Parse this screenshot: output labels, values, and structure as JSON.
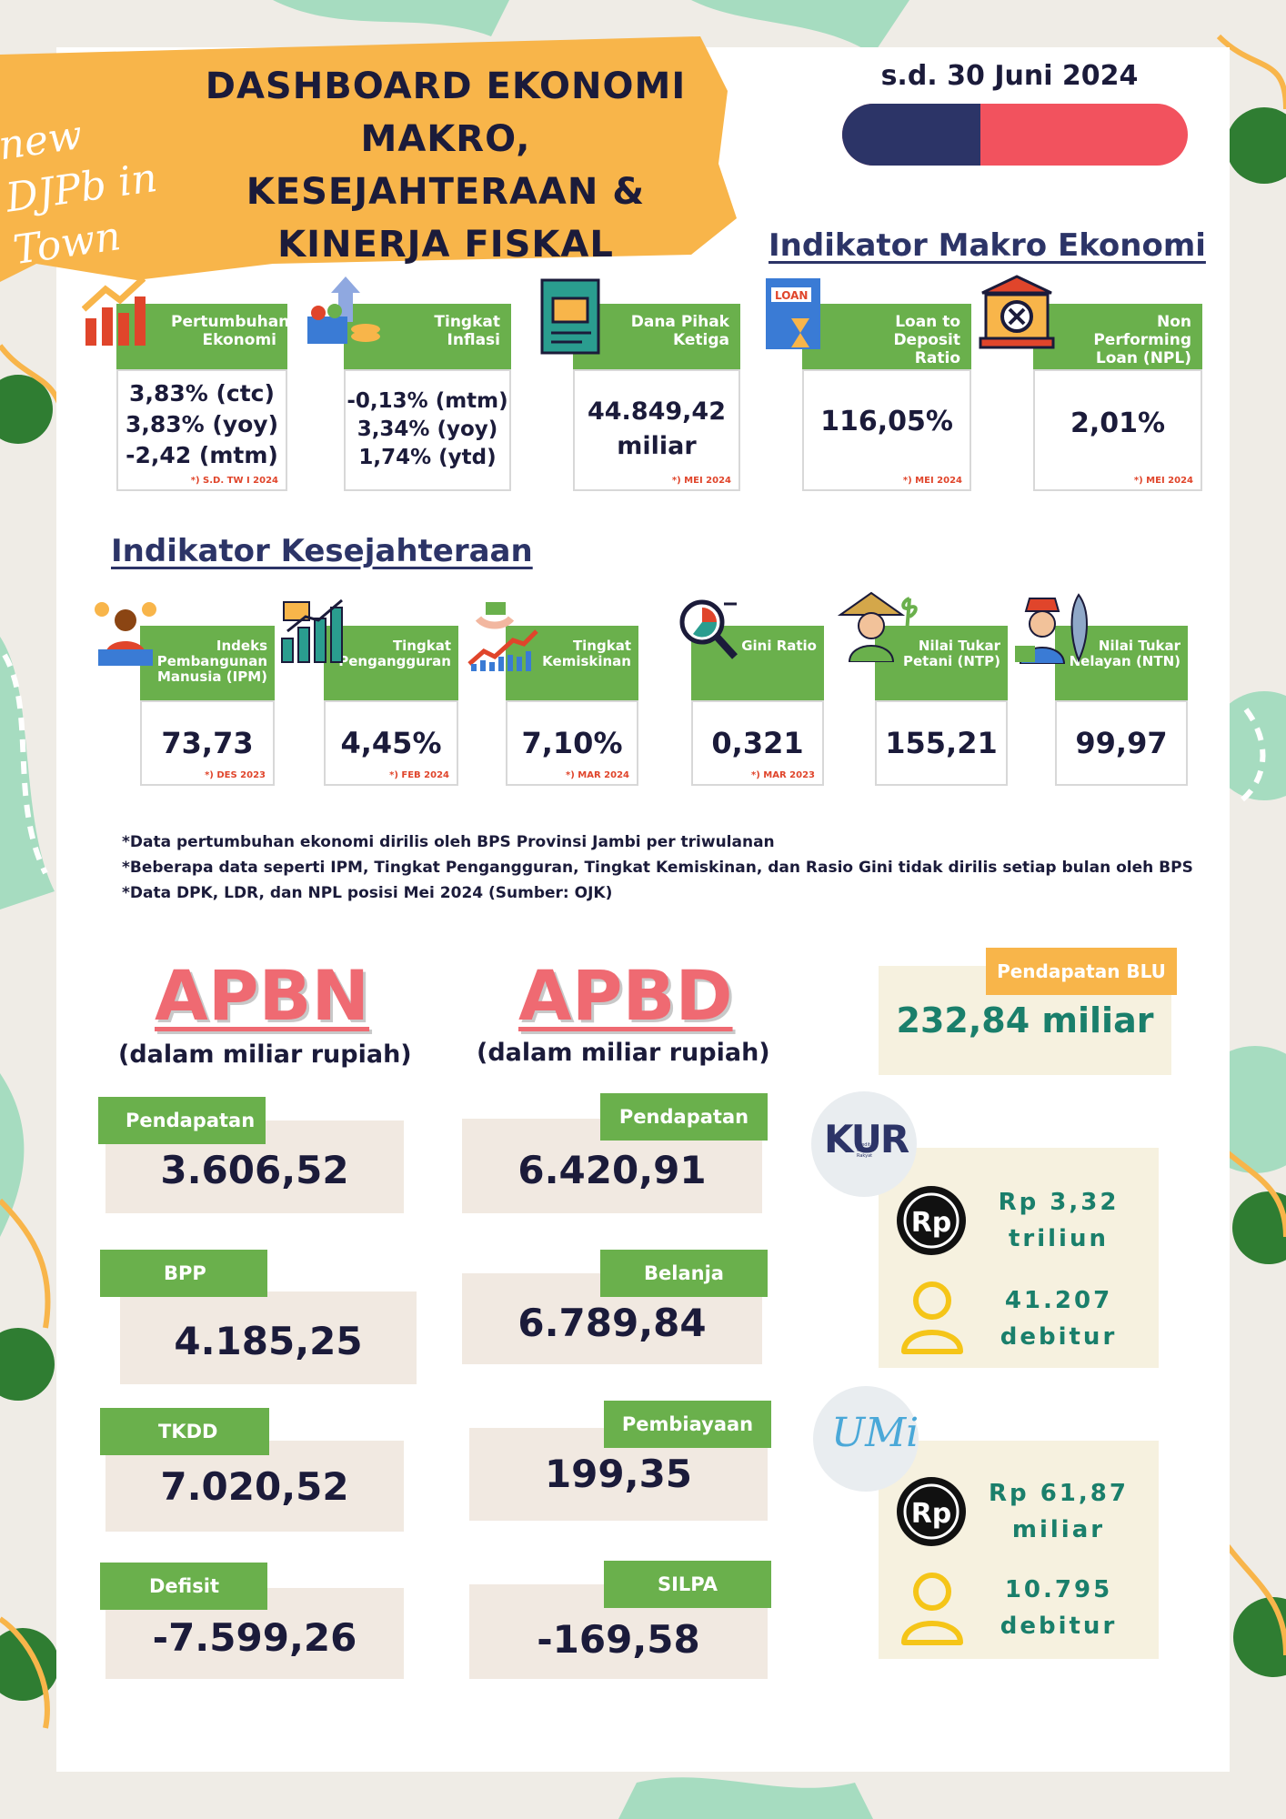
{
  "header": {
    "brand": "new DJPb in Town",
    "title_lines": [
      "DASHBOARD EKONOMI",
      "MAKRO, KESEJAHTERAAN &",
      "KINERJA FISKAL"
    ],
    "date": "s.d. 30 Juni 2024"
  },
  "makro": {
    "title": "Indikator Makro Ekonomi",
    "cards": [
      {
        "label": "Pertumbuhan Ekonomi",
        "values": [
          "3,83% (ctc)",
          "3,83% (yoy)",
          "-2,42 (mtm)"
        ],
        "note": "*) S.D. TW I 2024"
      },
      {
        "label": "Tingkat Inflasi",
        "values": [
          "-0,13% (mtm)",
          "3,34% (yoy)",
          "1,74% (ytd)"
        ],
        "note": ""
      },
      {
        "label": "Dana Pihak Ketiga",
        "values": [
          "44.849,42",
          "miliar"
        ],
        "note": "*) MEI 2024"
      },
      {
        "label": "Loan to Deposit Ratio",
        "values": [
          "116,05%"
        ],
        "note": "*) MEI 2024"
      },
      {
        "label": "Non Performing Loan (NPL)",
        "values": [
          "2,01%"
        ],
        "note": "*) MEI 2024"
      }
    ]
  },
  "kesejahteraan": {
    "title": "Indikator Kesejahteraan",
    "cards": [
      {
        "label": "Indeks Pembangunan Manusia (IPM)",
        "value": "73,73",
        "note": "*) DES 2023"
      },
      {
        "label": "Tingkat Pengangguran",
        "value": "4,45%",
        "note": "*) FEB 2024"
      },
      {
        "label": "Tingkat Kemiskinan",
        "value": "7,10%",
        "note": "*) MAR 2024"
      },
      {
        "label": "Gini Ratio",
        "value": "0,321",
        "note": "*) MAR 2023"
      },
      {
        "label": "Nilai Tukar Petani (NTP)",
        "value": "155,21",
        "note": ""
      },
      {
        "label": "Nilai Tukar Nelayan (NTN)",
        "value": "99,97",
        "note": ""
      }
    ]
  },
  "footnotes": [
    "*Data pertumbuhan ekonomi dirilis oleh BPS Provinsi Jambi per triwulanan",
    "*Beberapa data seperti IPM, Tingkat Pengangguran, Tingkat Kemiskinan, dan Rasio Gini tidak dirilis setiap bulan oleh BPS",
    "*Data DPK, LDR, dan NPL posisi Mei 2024 (Sumber: OJK)"
  ],
  "apbn": {
    "title": "APBN",
    "unit": "(dalam miliar rupiah)",
    "items": [
      {
        "label": "Pendapatan",
        "value": "3.606,52"
      },
      {
        "label": "BPP",
        "value": "4.185,25"
      },
      {
        "label": "TKDD",
        "value": "7.020,52"
      },
      {
        "label": "Defisit",
        "value": "-7.599,26"
      }
    ]
  },
  "apbd": {
    "title": "APBD",
    "unit": "(dalam miliar rupiah)",
    "items": [
      {
        "label": "Pendapatan",
        "value": "6.420,91"
      },
      {
        "label": "Belanja",
        "value": "6.789,84"
      },
      {
        "label": "Pembiayaan",
        "value": "199,35"
      },
      {
        "label": "SILPA",
        "value": "-169,58"
      }
    ]
  },
  "blu": {
    "label": "Pendapatan BLU",
    "value": "232,84 miliar"
  },
  "kur": {
    "logo": "KUR",
    "logo_sub": "Kredit Usaha Rakyat",
    "amount_lines": [
      "Rp 3,32",
      "triliun"
    ],
    "debtor_lines": [
      "41.207",
      "debitur"
    ]
  },
  "umi": {
    "logo": "UMi",
    "amount_lines": [
      "Rp 61,87",
      "miliar"
    ],
    "debtor_lines": [
      "10.795",
      "debitur"
    ]
  },
  "colors": {
    "green": "#6ab04c",
    "orange": "#f8b54a",
    "navy": "#2c3467",
    "red": "#f2525e",
    "pink": "#ef6a72",
    "teal": "#1a7f6b"
  }
}
